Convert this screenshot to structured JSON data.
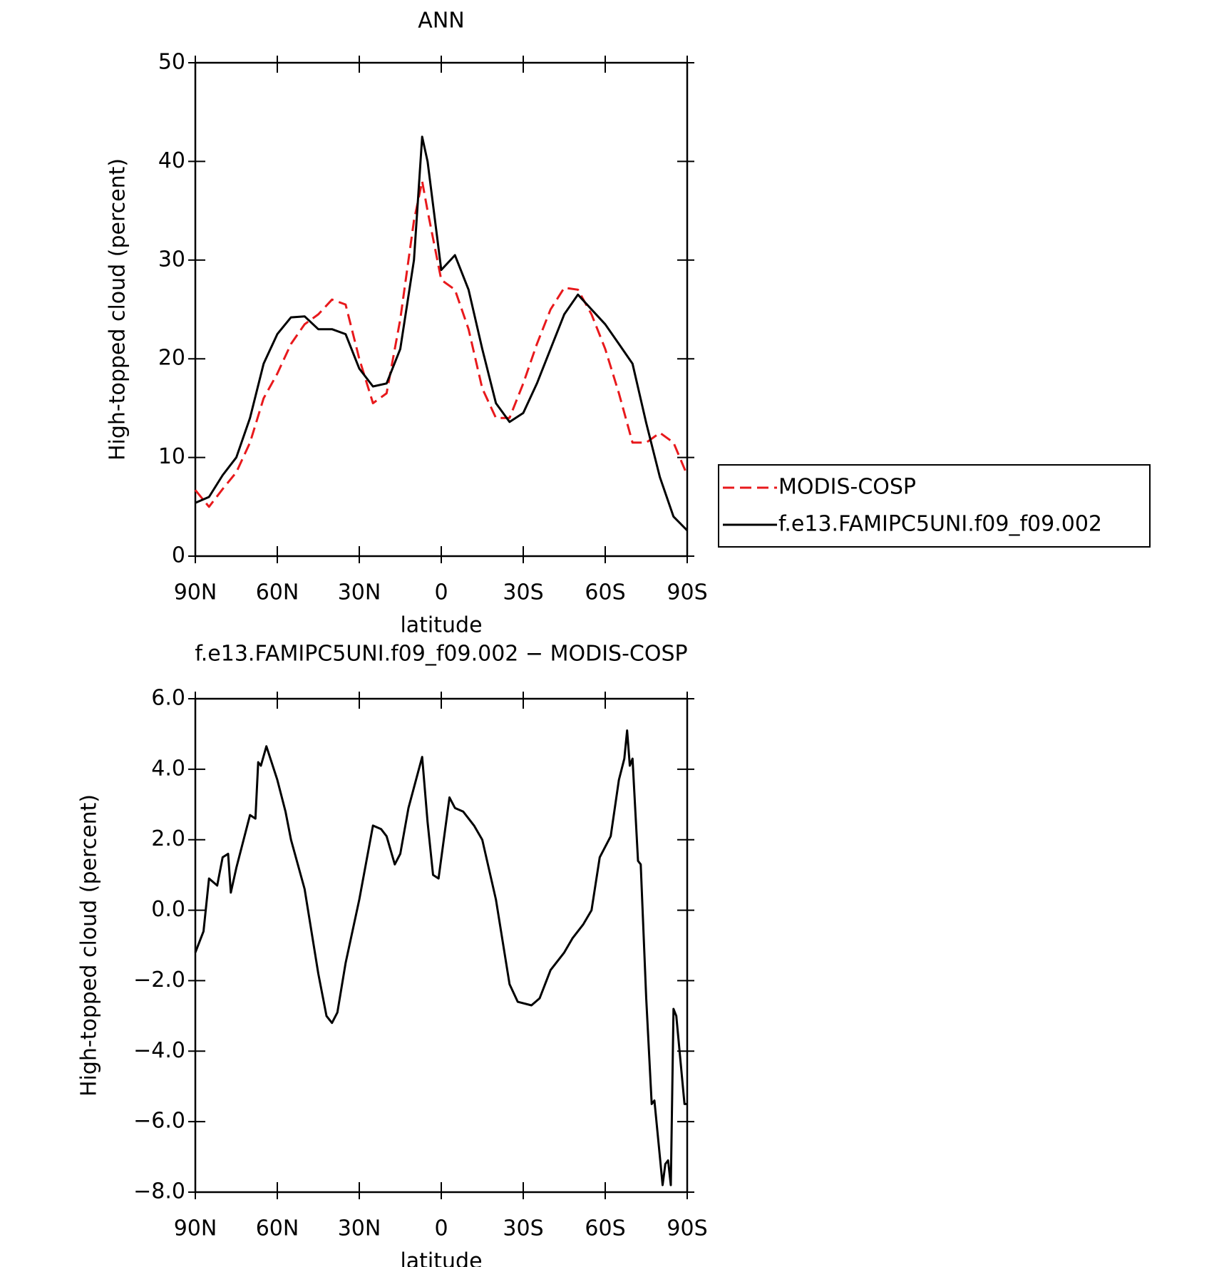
{
  "chart_data": [
    {
      "type": "line",
      "title": "ANN",
      "xlabel": "latitude",
      "ylabel": "High-topped cloud (percent)",
      "x": [
        90,
        85,
        80,
        75,
        70,
        65,
        60,
        55,
        50,
        45,
        40,
        35,
        30,
        25,
        20,
        15,
        10,
        7,
        5,
        0,
        -5,
        -10,
        -15,
        -20,
        -25,
        -30,
        -35,
        -40,
        -45,
        -50,
        -55,
        -60,
        -65,
        -70,
        -75,
        -80,
        -85,
        -90
      ],
      "series": [
        {
          "name": "MODIS-COSP",
          "color": "#e8191c",
          "dash": true,
          "values": [
            6.7,
            5.0,
            6.8,
            8.5,
            11.5,
            16,
            18.5,
            21.5,
            23.5,
            24.5,
            26,
            25.5,
            20,
            15.5,
            16.5,
            24,
            34,
            38,
            35,
            28,
            27,
            23,
            17,
            14,
            14,
            17.5,
            21.5,
            25,
            27.2,
            27,
            24.5,
            21,
            16.5,
            11.5,
            11.5,
            12.5,
            11.5,
            8.2
          ]
        },
        {
          "name": "f.e13.FAMIPC5UNI.f09_f09.002",
          "color": "#000000",
          "dash": false,
          "values": [
            5.4,
            6.0,
            8.2,
            10.0,
            14,
            19.5,
            22.5,
            24.2,
            24.3,
            23.0,
            23.0,
            22.5,
            19,
            17.2,
            17.5,
            21,
            30,
            42.5,
            40,
            29,
            30.5,
            27,
            21,
            15.5,
            13.6,
            14.5,
            17.5,
            21,
            24.5,
            26.5,
            25,
            23.5,
            21.5,
            19.5,
            13.5,
            8,
            4,
            2.6
          ]
        }
      ],
      "xlim": [
        90,
        -90
      ],
      "xticks": [
        {
          "value": 90,
          "label": "90N"
        },
        {
          "value": 60,
          "label": "60N"
        },
        {
          "value": 30,
          "label": "30N"
        },
        0,
        {
          "value": -30,
          "label": "30S"
        },
        {
          "value": -60,
          "label": "60S"
        },
        {
          "value": -90,
          "label": "90S"
        }
      ],
      "ylim": [
        0,
        50
      ],
      "yticks": [
        0,
        10,
        20,
        30,
        40,
        50
      ],
      "legend": "right"
    },
    {
      "type": "line",
      "title": "f.e13.FAMIPC5UNI.f09_f09.002 − MODIS-COSP",
      "xlabel": "latitude",
      "ylabel": "High-topped cloud (percent)",
      "x": [
        90,
        87,
        85,
        82,
        80,
        78,
        77,
        75,
        70,
        68,
        67,
        66,
        64,
        60,
        57,
        55,
        50,
        45,
        42,
        40,
        38,
        35,
        30,
        25,
        22,
        20,
        17,
        15,
        12,
        7,
        5,
        3,
        1,
        -3,
        -5,
        -8,
        -12,
        -15,
        -20,
        -25,
        -28,
        -33,
        -36,
        -40,
        -45,
        -48,
        -52,
        -55,
        -58,
        -62,
        -65,
        -67,
        -68,
        -69,
        -70,
        -72,
        -73,
        -75,
        -77,
        -78,
        -80,
        -81,
        -82,
        -83,
        -84,
        -85,
        -86,
        -89,
        -90
      ],
      "series": [
        {
          "name": null,
          "color": "#000000",
          "dash": false,
          "values": [
            -1.2,
            -0.6,
            0.9,
            0.7,
            1.5,
            1.6,
            0.5,
            1.2,
            2.7,
            2.6,
            4.2,
            4.1,
            4.65,
            3.7,
            2.8,
            2.0,
            0.6,
            -1.8,
            -3.0,
            -3.2,
            -2.9,
            -1.5,
            0.3,
            2.4,
            2.3,
            2.1,
            1.3,
            1.6,
            2.9,
            4.35,
            2.5,
            1.0,
            0.9,
            3.2,
            2.9,
            2.8,
            2.4,
            2.0,
            0.3,
            -2.1,
            -2.6,
            -2.7,
            -2.5,
            -1.7,
            -1.2,
            -0.8,
            -0.4,
            0.0,
            1.5,
            2.1,
            3.7,
            4.3,
            5.1,
            4.1,
            4.3,
            1.4,
            1.3,
            -2.5,
            -5.5,
            -5.4,
            -7.0,
            -7.8,
            -7.2,
            -7.1,
            -7.8,
            -2.8,
            -3.0,
            -5.5,
            -5.5
          ]
        }
      ],
      "xlim": [
        90,
        -90
      ],
      "xticks": [
        {
          "value": 90,
          "label": "90N"
        },
        {
          "value": 60,
          "label": "60N"
        },
        {
          "value": 30,
          "label": "30N"
        },
        0,
        {
          "value": -30,
          "label": "30S"
        },
        {
          "value": -60,
          "label": "60S"
        },
        {
          "value": -90,
          "label": "90S"
        }
      ],
      "ylim": [
        -8,
        6
      ],
      "yticks": [
        {
          "value": -8,
          "label": "−8.0"
        },
        {
          "value": -6,
          "label": "−6.0"
        },
        {
          "value": -4,
          "label": "−4.0"
        },
        {
          "value": -2,
          "label": "−2.0"
        },
        {
          "value": 0,
          "label": "0.0"
        },
        {
          "value": 2,
          "label": "2.0"
        },
        {
          "value": 4,
          "label": "4.0"
        },
        {
          "value": 6,
          "label": "6.0"
        }
      ]
    }
  ]
}
